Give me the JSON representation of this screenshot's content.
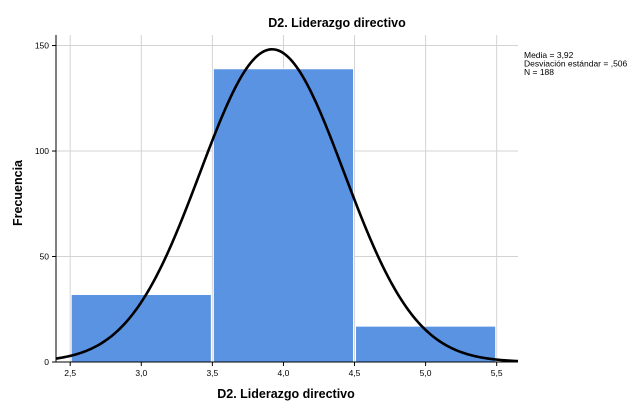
{
  "chart_data": {
    "type": "bar",
    "title": "D2. Liderazgo directivo",
    "xlabel": "D2. Liderazgo directivo",
    "ylabel": "Frecuencia",
    "xlim": [
      2.4,
      5.65
    ],
    "ylim": [
      0,
      155
    ],
    "x_ticks": [
      2.5,
      3.0,
      3.5,
      4.0,
      4.5,
      5.0,
      5.5
    ],
    "x_tick_labels": [
      "2,5",
      "3,0",
      "3,5",
      "4,0",
      "4,5",
      "5,0",
      "5,5"
    ],
    "y_ticks": [
      0,
      50,
      100,
      150
    ],
    "y_tick_labels": [
      "0",
      "50",
      "100",
      "150"
    ],
    "bins": [
      {
        "x0": 2.5,
        "x1": 3.5,
        "count": 32
      },
      {
        "x0": 3.5,
        "x1": 4.5,
        "count": 139
      },
      {
        "x0": 4.5,
        "x1": 5.5,
        "count": 17
      }
    ],
    "normal_curve": {
      "mean": 3.92,
      "sd": 0.506,
      "n": 188,
      "bin_width": 1.0
    },
    "stats": [
      "Media = 3,92",
      "Desviación estándar = ,506",
      "N = 188"
    ],
    "grid": true,
    "legend": "right",
    "colors": {
      "bar": "#5b93e3",
      "bar_stroke": "#ffffff",
      "curve": "#000000",
      "grid": "#d3d3d3",
      "axis": "#000000"
    }
  }
}
